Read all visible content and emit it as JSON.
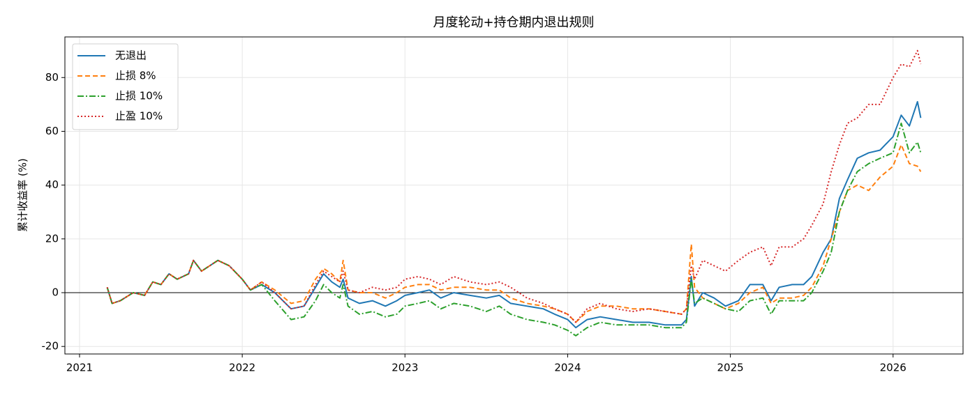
{
  "chart_data": {
    "type": "line",
    "title": "月度轮动+持仓期内退出规则",
    "y_label": "累计收益率 (%)",
    "x": [
      2021.17,
      2021.2,
      2021.25,
      2021.33,
      2021.4,
      2021.45,
      2021.5,
      2021.55,
      2021.6,
      2021.67,
      2021.7,
      2021.75,
      2021.8,
      2021.85,
      2021.92,
      2022.0,
      2022.05,
      2022.12,
      2022.2,
      2022.3,
      2022.38,
      2022.45,
      2022.5,
      2022.55,
      2022.6,
      2022.62,
      2022.65,
      2022.72,
      2022.8,
      2022.88,
      2022.95,
      2023.0,
      2023.08,
      2023.15,
      2023.22,
      2023.3,
      2023.4,
      2023.5,
      2023.58,
      2023.65,
      2023.75,
      2023.85,
      2023.92,
      2024.0,
      2024.05,
      2024.12,
      2024.2,
      2024.3,
      2024.4,
      2024.5,
      2024.6,
      2024.7,
      2024.73,
      2024.76,
      2024.78,
      2024.83,
      2024.9,
      2024.97,
      2025.05,
      2025.12,
      2025.2,
      2025.25,
      2025.3,
      2025.38,
      2025.45,
      2025.5,
      2025.57,
      2025.62,
      2025.67,
      2025.72,
      2025.78,
      2025.85,
      2025.92,
      2026.0,
      2026.05,
      2026.1,
      2026.15,
      2026.17
    ],
    "series": [
      {
        "name": "无退出",
        "color": "#1f77b4",
        "linestyle": "solid",
        "values": [
          2,
          -4,
          -3,
          0,
          -1,
          4,
          3,
          7,
          5,
          7,
          12,
          8,
          10,
          12,
          10,
          5,
          1,
          3,
          0,
          -6,
          -5,
          2,
          7,
          4,
          2,
          5,
          -2,
          -4,
          -3,
          -5,
          -3,
          -1,
          0,
          1,
          -2,
          0,
          -1,
          -2,
          -1,
          -4,
          -5,
          -6,
          -8,
          -10,
          -13,
          -10,
          -9,
          -10,
          -11,
          -11,
          -12,
          -12,
          -10,
          6,
          -5,
          0,
          -2,
          -5,
          -3,
          3,
          3,
          -3,
          2,
          3,
          3,
          6,
          15,
          20,
          35,
          42,
          50,
          52,
          53,
          58,
          66,
          62,
          71,
          65
        ]
      },
      {
        "name": "止损 8%",
        "color": "#ff7f0e",
        "linestyle": "dashed",
        "values": [
          2,
          -4,
          -3,
          0,
          -1,
          4,
          3,
          7,
          5,
          7,
          12,
          8,
          10,
          12,
          10,
          5,
          1,
          4,
          1,
          -4,
          -3,
          5,
          9,
          7,
          4,
          12,
          1,
          0,
          0,
          -2,
          0,
          2,
          3,
          3,
          1,
          2,
          2,
          1,
          1,
          -2,
          -4,
          -5,
          -6,
          -8,
          -11,
          -7,
          -5,
          -5,
          -6,
          -6,
          -7,
          -8,
          -6,
          18,
          2,
          -2,
          -4,
          -6,
          -4,
          0,
          2,
          -4,
          -2,
          -2,
          -1,
          2,
          10,
          20,
          30,
          38,
          40,
          38,
          43,
          47,
          55,
          48,
          47,
          45
        ]
      },
      {
        "name": "止损 10%",
        "color": "#2ca02c",
        "linestyle": "dashdot",
        "values": [
          2,
          -4,
          -3,
          0,
          -1,
          4,
          3,
          7,
          5,
          7,
          12,
          8,
          10,
          12,
          10,
          5,
          1,
          3,
          -3,
          -10,
          -9,
          -3,
          3,
          0,
          -2,
          3,
          -5,
          -8,
          -7,
          -9,
          -8,
          -5,
          -4,
          -3,
          -6,
          -4,
          -5,
          -7,
          -5,
          -8,
          -10,
          -11,
          -12,
          -14,
          -16,
          -13,
          -11,
          -12,
          -12,
          -12,
          -13,
          -13,
          -11,
          5,
          -4,
          -2,
          -4,
          -6,
          -7,
          -3,
          -2,
          -8,
          -3,
          -3,
          -3,
          0,
          8,
          15,
          30,
          38,
          45,
          48,
          50,
          52,
          63,
          52,
          56,
          52
        ]
      },
      {
        "name": "止盈 10%",
        "color": "#d62728",
        "linestyle": "dotted",
        "values": [
          2,
          -4,
          -3,
          0,
          -1,
          4,
          3,
          7,
          5,
          7,
          12,
          8,
          10,
          12,
          10,
          5,
          1,
          4,
          0,
          -6,
          -5,
          3,
          8,
          6,
          4,
          8,
          1,
          0,
          2,
          1,
          2,
          5,
          6,
          5,
          3,
          6,
          4,
          3,
          4,
          2,
          -2,
          -4,
          -6,
          -8,
          -11,
          -6,
          -4,
          -6,
          -7,
          -6,
          -7,
          -8,
          -6,
          10,
          5,
          12,
          10,
          8,
          12,
          15,
          17,
          10,
          17,
          17,
          20,
          25,
          33,
          45,
          55,
          63,
          65,
          70,
          70,
          80,
          85,
          84,
          90,
          85
        ]
      }
    ],
    "xlim": [
      2020.91,
      2026.43
    ],
    "xticks": [
      2021,
      2022,
      2023,
      2024,
      2025,
      2026
    ],
    "ylim": [
      -22.8,
      95.1
    ],
    "yticks": [
      -20,
      0,
      20,
      40,
      60,
      80
    ],
    "hlines": [
      0
    ],
    "grid": true,
    "legend": "upper-left"
  }
}
